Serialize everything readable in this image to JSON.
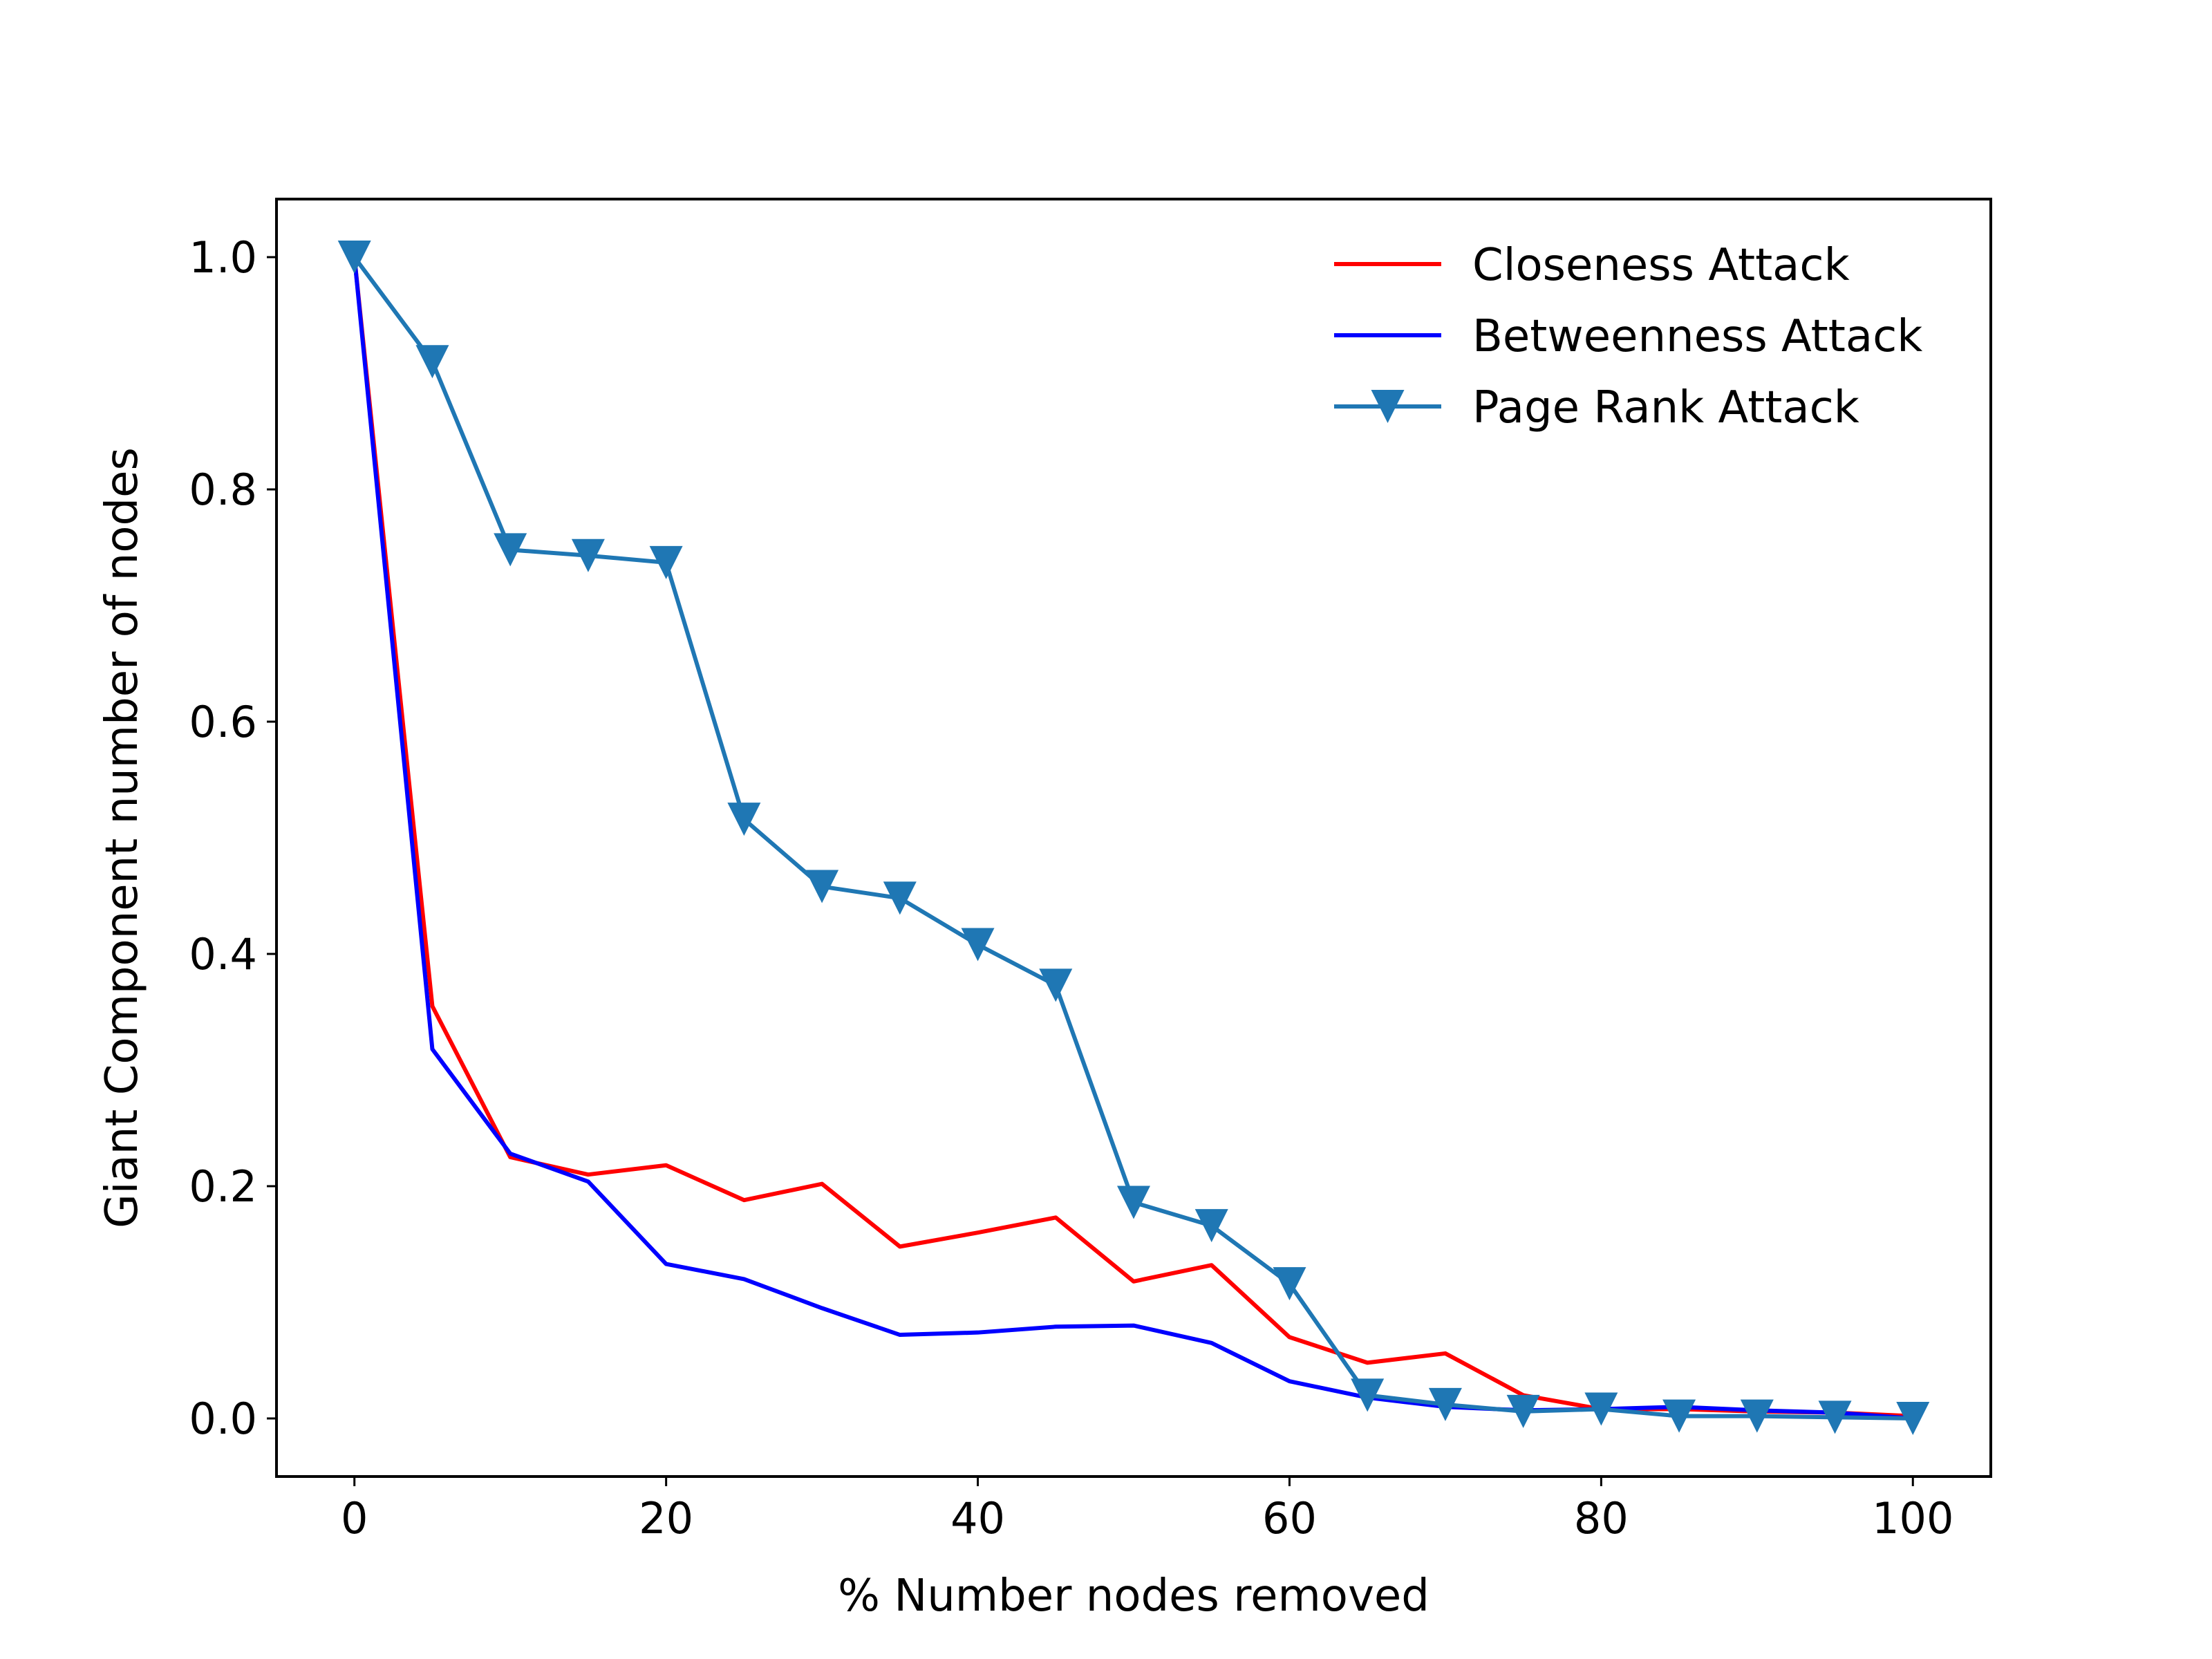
{
  "chart_data": {
    "type": "line",
    "title": "",
    "xlabel": "% Number nodes removed",
    "ylabel": "Giant Component number of nodes",
    "xlim": [
      -5,
      105
    ],
    "ylim": [
      -0.05,
      1.05
    ],
    "xticks": [
      0,
      20,
      40,
      60,
      80,
      100
    ],
    "xtick_labels": [
      "0",
      "20",
      "40",
      "60",
      "80",
      "100"
    ],
    "yticks": [
      0.0,
      0.2,
      0.4,
      0.6,
      0.8,
      1.0
    ],
    "ytick_labels": [
      "0.0",
      "0.2",
      "0.4",
      "0.6",
      "0.8",
      "1.0"
    ],
    "grid": false,
    "legend_position": "top-right",
    "x": [
      0,
      5,
      10,
      15,
      20,
      25,
      30,
      35,
      40,
      45,
      50,
      55,
      60,
      65,
      70,
      75,
      80,
      85,
      90,
      95,
      100
    ],
    "series": [
      {
        "name": "Closeness Attack",
        "color": "#ff0000",
        "marker": "none",
        "values": [
          1.0,
          0.355,
          0.225,
          0.21,
          0.218,
          0.188,
          0.202,
          0.148,
          0.16,
          0.173,
          0.118,
          0.132,
          0.07,
          0.048,
          0.056,
          0.02,
          0.008,
          0.008,
          0.006,
          0.005,
          0.002
        ]
      },
      {
        "name": "Betweenness Attack",
        "color": "#0000ff",
        "marker": "none",
        "values": [
          1.0,
          0.318,
          0.228,
          0.204,
          0.133,
          0.12,
          0.095,
          0.072,
          0.074,
          0.079,
          0.08,
          0.065,
          0.032,
          0.018,
          0.01,
          0.007,
          0.008,
          0.01,
          0.007,
          0.005,
          0.0
        ]
      },
      {
        "name": "Page Rank Attack",
        "color": "#1f77b4",
        "marker": "triangle-down",
        "values": [
          1.0,
          0.91,
          0.748,
          0.743,
          0.737,
          0.516,
          0.458,
          0.448,
          0.408,
          0.373,
          0.186,
          0.166,
          0.116,
          0.02,
          0.012,
          0.006,
          0.008,
          0.002,
          0.002,
          0.001,
          0.0
        ]
      }
    ]
  }
}
